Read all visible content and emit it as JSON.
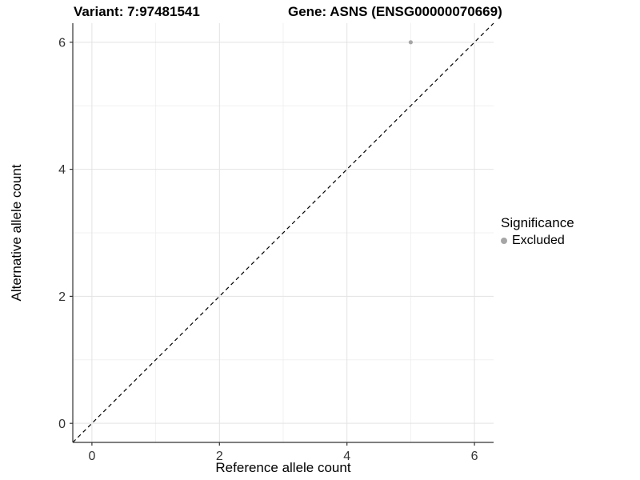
{
  "chart_data": {
    "type": "scatter",
    "titles": {
      "left": "Variant: 7:97481541",
      "right": "Gene: ASNS (ENSG00000070669)"
    },
    "xlabel": "Reference allele count",
    "ylabel": "Alternative allele count",
    "xlim": [
      -0.3,
      6.3
    ],
    "ylim": [
      -0.3,
      6.3
    ],
    "x_major_ticks": [
      0,
      2,
      4,
      6
    ],
    "x_minor_ticks": [
      1,
      3,
      5
    ],
    "y_major_ticks": [
      0,
      2,
      4,
      6
    ],
    "y_minor_ticks": [
      1,
      3,
      5
    ],
    "grid": "major+minor",
    "legend_position": "right",
    "series": [
      {
        "name": "Excluded",
        "color": "#a6a6a6",
        "points": [
          {
            "x": 5,
            "y": 6
          }
        ]
      }
    ],
    "reference_line": {
      "style": "dashed",
      "color": "#000000",
      "from": [
        -0.3,
        -0.3
      ],
      "to": [
        6.3,
        6.3
      ]
    },
    "legend": {
      "title": "Significance",
      "items": [
        {
          "label": "Excluded",
          "color": "#a6a6a6"
        }
      ]
    }
  },
  "style_colors": {
    "grid_major": "#e3e3e3",
    "grid_minor": "#f0f0f0",
    "axis_line": "#333333",
    "tick_mark": "#333333",
    "tick_label": "#333333",
    "title_text": "#000000"
  }
}
